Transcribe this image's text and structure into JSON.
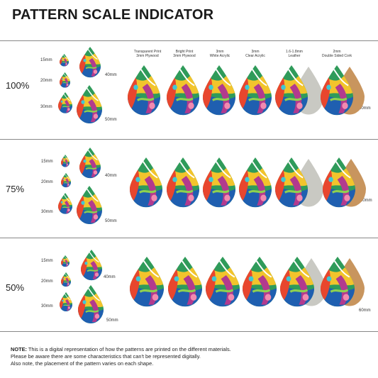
{
  "title": "PATTERN SCALE INDICATOR",
  "materials": [
    {
      "line1": "Transparent Print",
      "line2": "3mm Plywood"
    },
    {
      "line1": "Bright Print",
      "line2": "3mm Plywood"
    },
    {
      "line1": "3mm",
      "line2": "White Acrylic"
    },
    {
      "line1": "3mm",
      "line2": "Clear Acrylic"
    },
    {
      "line1": "1.6-1.8mm",
      "line2": "Leather"
    },
    {
      "line1": "2mm",
      "line2": "Double Sided Cork"
    }
  ],
  "sections": [
    {
      "scale": "100%",
      "sizes": [
        "15mm",
        "20mm",
        "30mm",
        "40mm",
        "50mm"
      ],
      "materialSize": "60mm"
    },
    {
      "scale": "75%",
      "sizes": [
        "15mm",
        "20mm",
        "30mm",
        "40mm",
        "50mm"
      ],
      "materialSize": "60mm"
    },
    {
      "scale": "50%",
      "sizes": [
        "15mm",
        "20mm",
        "30mm",
        "40mm",
        "50mm"
      ],
      "materialSize": "60mm"
    }
  ],
  "note": {
    "label": "NOTE:",
    "line1": " This is a digital representation of how the patterns are printed on the different materials.",
    "line2": "Please be aware there are some characteristics that can't be represented digitally.",
    "line3": "Also note, the placement of the pattern varies on each shape."
  },
  "colors": {
    "leather": "#c9c9c3",
    "cork": "#c8955e",
    "rule": "#888888"
  }
}
